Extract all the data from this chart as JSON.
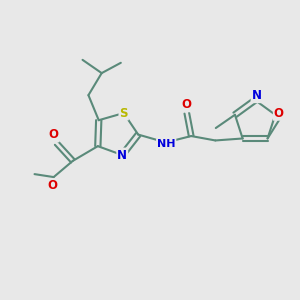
{
  "background_color": "#e8e8e8",
  "bond_color": "#5a8a7a",
  "atom_colors": {
    "S": "#b8b800",
    "N": "#0000dd",
    "O": "#dd0000",
    "C": "#5a8a7a"
  },
  "figsize": [
    3.0,
    3.0
  ],
  "dpi": 100
}
